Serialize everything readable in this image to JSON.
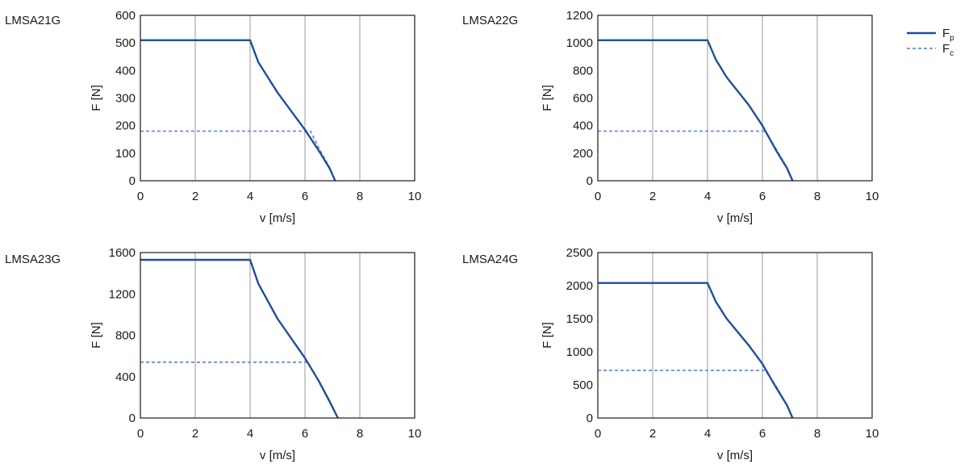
{
  "chart_data": [
    {
      "type": "line",
      "label": "LMSA21G",
      "xlabel": "v [m/s]",
      "ylabel": "F [N]",
      "xlim": [
        0,
        10
      ],
      "ylim": [
        0,
        600
      ],
      "xticks": [
        0,
        2,
        4,
        6,
        8,
        10
      ],
      "yticks": [
        0,
        100,
        200,
        300,
        400,
        500,
        600
      ],
      "series": [
        {
          "name": "Fp",
          "x": [
            0,
            4.0,
            4.3,
            5.0,
            6.0,
            6.5,
            6.9,
            7.1
          ],
          "y": [
            510,
            510,
            430,
            320,
            185,
            110,
            45,
            0
          ]
        },
        {
          "name": "Fc",
          "x": [
            0,
            6.2,
            6.5,
            6.9,
            7.1
          ],
          "y": [
            180,
            180,
            120,
            48,
            0
          ]
        }
      ]
    },
    {
      "type": "line",
      "label": "LMSA22G",
      "xlabel": "v [m/s]",
      "ylabel": "F [N]",
      "xlim": [
        0,
        10
      ],
      "ylim": [
        0,
        1200
      ],
      "xticks": [
        0,
        2,
        4,
        6,
        8,
        10
      ],
      "yticks": [
        0,
        200,
        400,
        600,
        800,
        1000,
        1200
      ],
      "series": [
        {
          "name": "Fp",
          "x": [
            0,
            4.0,
            4.3,
            4.7,
            5.5,
            6.0,
            6.5,
            6.9,
            7.1
          ],
          "y": [
            1020,
            1020,
            880,
            750,
            550,
            400,
            220,
            90,
            0
          ]
        },
        {
          "name": "Fc",
          "x": [
            0,
            6.1,
            6.5,
            6.9,
            7.1
          ],
          "y": [
            360,
            360,
            230,
            95,
            0
          ]
        }
      ]
    },
    {
      "type": "line",
      "label": "LMSA23G",
      "xlabel": "v [m/s]",
      "ylabel": "F [N]",
      "xlim": [
        0,
        10
      ],
      "ylim": [
        0,
        1600
      ],
      "xticks": [
        0,
        2,
        4,
        6,
        8,
        10
      ],
      "yticks": [
        0,
        400,
        800,
        1200,
        1600
      ],
      "series": [
        {
          "name": "Fp",
          "x": [
            0,
            4.0,
            4.3,
            5.0,
            6.0,
            6.5,
            6.9,
            7.2
          ],
          "y": [
            1530,
            1530,
            1300,
            960,
            580,
            360,
            160,
            0
          ]
        },
        {
          "name": "Fc",
          "x": [
            0,
            6.1,
            6.5,
            6.9,
            7.2
          ],
          "y": [
            540,
            540,
            360,
            150,
            0
          ]
        }
      ]
    },
    {
      "type": "line",
      "label": "LMSA24G",
      "xlabel": "v [m/s]",
      "ylabel": "F [N]",
      "xlim": [
        0,
        10
      ],
      "ylim": [
        0,
        2500
      ],
      "xticks": [
        0,
        2,
        4,
        6,
        8,
        10
      ],
      "yticks": [
        0,
        500,
        1000,
        1500,
        2000,
        2500
      ],
      "series": [
        {
          "name": "Fp",
          "x": [
            0,
            4.0,
            4.3,
            4.7,
            5.5,
            6.0,
            6.5,
            6.9,
            7.1
          ],
          "y": [
            2040,
            2040,
            1760,
            1500,
            1100,
            820,
            460,
            190,
            0
          ]
        },
        {
          "name": "Fc",
          "x": [
            0,
            6.1,
            6.5,
            6.9,
            7.1
          ],
          "y": [
            720,
            720,
            480,
            190,
            0
          ]
        }
      ]
    }
  ],
  "legend": {
    "placement": "top-right",
    "items": [
      {
        "name": "Fp",
        "base": "F",
        "sub": "p",
        "style": "solid",
        "color": "#1f4e9c"
      },
      {
        "name": "Fc",
        "base": "F",
        "sub": "c",
        "style": "dashed",
        "color": "#6f8ed0"
      }
    ]
  },
  "colors": {
    "fp": "#1f4e9c",
    "fc": "#6f8ed0",
    "grid": "#9a9a9a",
    "axis": "#1a1a1a"
  }
}
